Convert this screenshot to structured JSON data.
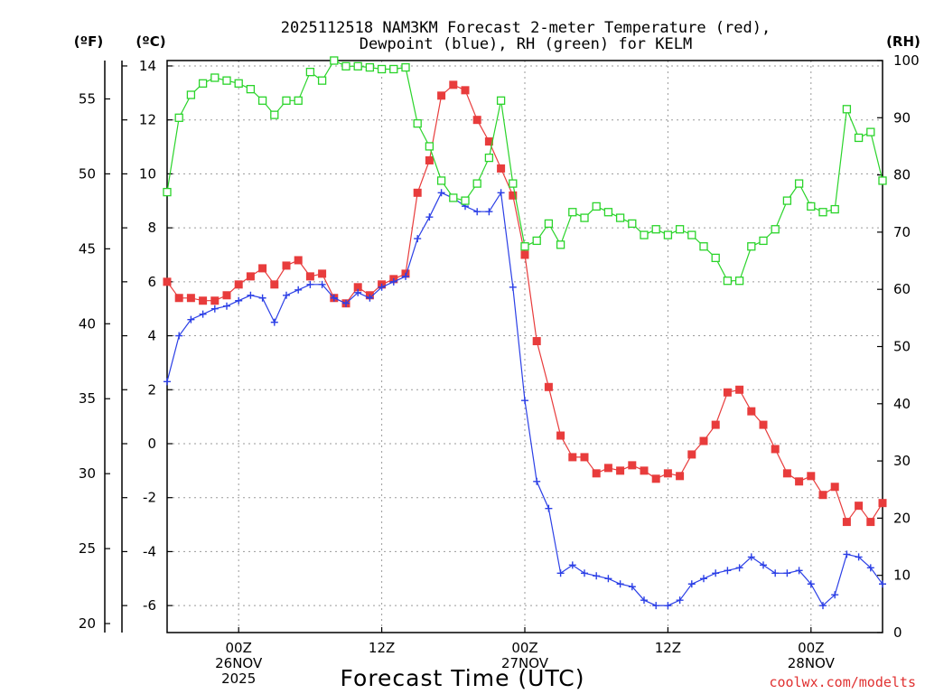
{
  "chart_data": {
    "type": "line",
    "title_lines": [
      "2025112518 NAM3KM Forecast 2-meter Temperature (red),",
      "Dewpoint (blue), RH (green) for KELM"
    ],
    "left_unit_f": "(ºF)",
    "left_unit_c": "(ºC)",
    "right_unit": "(RH)",
    "xlabel": "Forecast Time (UTC)",
    "credit": "coolwx.com/modelts",
    "hours": [
      0,
      1,
      2,
      3,
      4,
      5,
      6,
      7,
      8,
      9,
      10,
      11,
      12,
      13,
      14,
      15,
      16,
      17,
      18,
      19,
      20,
      21,
      22,
      23,
      24,
      25,
      26,
      27,
      28,
      29,
      30,
      31,
      32,
      33,
      34,
      35,
      36,
      37,
      38,
      39,
      40,
      41,
      42,
      43,
      44,
      45,
      46,
      47,
      48,
      49,
      50,
      51,
      52,
      53,
      54,
      55,
      56,
      57,
      58,
      59,
      60
    ],
    "series": [
      {
        "name": "Temperature",
        "unit": "C",
        "color": "#e83c3c",
        "marker": "filled-square",
        "values": [
          6.0,
          5.4,
          5.4,
          5.3,
          5.3,
          5.5,
          5.9,
          6.2,
          6.5,
          5.9,
          6.6,
          6.8,
          6.2,
          6.3,
          5.4,
          5.2,
          5.8,
          5.5,
          5.9,
          6.1,
          6.3,
          9.3,
          10.5,
          12.9,
          13.3,
          13.1,
          12.0,
          11.2,
          10.2,
          9.2,
          7.0,
          3.8,
          2.1,
          0.3,
          -0.5,
          -0.5,
          -1.1,
          -0.9,
          -1.0,
          -0.8,
          -1.0,
          -1.3,
          -1.1,
          -1.2,
          -0.4,
          0.1,
          0.7,
          1.9,
          2.0,
          1.2,
          0.7,
          -0.2,
          -1.1,
          -1.4,
          -1.2,
          -1.9,
          -1.6,
          -2.9,
          -2.3,
          -2.9,
          -2.2
        ]
      },
      {
        "name": "Dewpoint",
        "unit": "C",
        "color": "#2b3fe6",
        "marker": "plus",
        "values": [
          2.3,
          4.0,
          4.6,
          4.8,
          5.0,
          5.1,
          5.3,
          5.5,
          5.4,
          4.5,
          5.5,
          5.7,
          5.9,
          5.9,
          5.4,
          5.2,
          5.6,
          5.4,
          5.8,
          6.0,
          6.2,
          7.6,
          8.4,
          9.3,
          9.1,
          8.8,
          8.6,
          8.6,
          9.3,
          5.8,
          1.6,
          -1.4,
          -2.4,
          -4.8,
          -4.5,
          -4.8,
          -4.9,
          -5.0,
          -5.2,
          -5.3,
          -5.8,
          -6.0,
          -6.0,
          -5.8,
          -5.2,
          -5.0,
          -4.8,
          -4.7,
          -4.6,
          -4.2,
          -4.5,
          -4.8,
          -4.8,
          -4.7,
          -5.2,
          -6.0,
          -5.6,
          -4.1,
          -4.2,
          -4.6,
          -5.2
        ]
      },
      {
        "name": "RH",
        "unit": "%",
        "color": "#2ad42a",
        "marker": "open-square",
        "values": [
          77,
          90,
          94,
          96,
          97,
          96.5,
          96,
          95,
          93,
          90.5,
          93,
          93,
          98,
          96.5,
          100,
          99,
          99,
          98.8,
          98.5,
          98.5,
          98.8,
          89,
          85,
          79,
          76,
          75.5,
          78.5,
          83,
          93,
          78.5,
          67.5,
          68.5,
          71.5,
          67.8,
          73.5,
          72.5,
          74.5,
          73.5,
          72.5,
          71.5,
          69.5,
          70.5,
          69.5,
          70.5,
          69.5,
          67.5,
          65.5,
          61.5,
          61.5,
          67.5,
          68.5,
          70.5,
          75.5,
          78.5,
          74.5,
          73.5,
          74,
          91.5,
          86.5,
          87.5,
          79
        ]
      }
    ],
    "x_ticks": [
      {
        "hour": 6,
        "lines": [
          "00Z",
          "26NOV",
          "2025"
        ]
      },
      {
        "hour": 18,
        "lines": [
          "12Z"
        ]
      },
      {
        "hour": 30,
        "lines": [
          "00Z",
          "27NOV"
        ]
      },
      {
        "hour": 42,
        "lines": [
          "12Z"
        ]
      },
      {
        "hour": 54,
        "lines": [
          "00Z",
          "28NOV"
        ]
      }
    ],
    "x_range": [
      0,
      60
    ],
    "celsius_axis": {
      "range": [
        -7,
        14.2
      ],
      "ticks": [
        14,
        12,
        10,
        8,
        6,
        4,
        2,
        0,
        -2,
        -4,
        -6
      ]
    },
    "fahrenheit_axis": {
      "ticks": [
        55,
        50,
        45,
        40,
        35,
        30,
        25,
        20
      ]
    },
    "rh_axis": {
      "range": [
        0,
        100
      ],
      "ticks": [
        100,
        90,
        80,
        70,
        60,
        50,
        40,
        30,
        20,
        10,
        0
      ]
    },
    "grid": true
  }
}
